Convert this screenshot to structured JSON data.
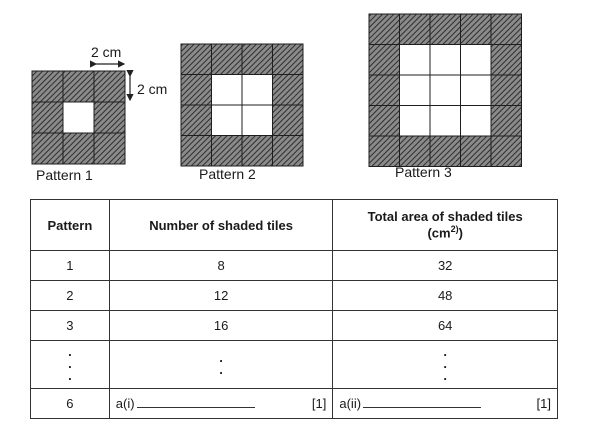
{
  "dimension_width": "2 cm",
  "dimension_height": "2 cm",
  "patterns": [
    {
      "caption": "Pattern 1",
      "grid": 3
    },
    {
      "caption": "Pattern 2",
      "grid": 4
    },
    {
      "caption": "Pattern 3",
      "grid": 5
    }
  ],
  "table": {
    "headers": {
      "pattern": "Pattern",
      "shaded": "Number of shaded tiles",
      "area": "Total area of shaded tiles",
      "area_unit": "(cm",
      "area_unit_sup": "2)",
      "area_unit_close": ")"
    },
    "rows": [
      {
        "pattern": "1",
        "shaded": "8",
        "area": "32"
      },
      {
        "pattern": "2",
        "shaded": "12",
        "area": "48"
      },
      {
        "pattern": "3",
        "shaded": "16",
        "area": "64"
      }
    ],
    "dots": ".",
    "last_row": {
      "pattern": "6",
      "shaded_label": "a(i)",
      "shaded_mark": "[1]",
      "area_label": "a(ii)",
      "area_mark": "[1]"
    }
  }
}
